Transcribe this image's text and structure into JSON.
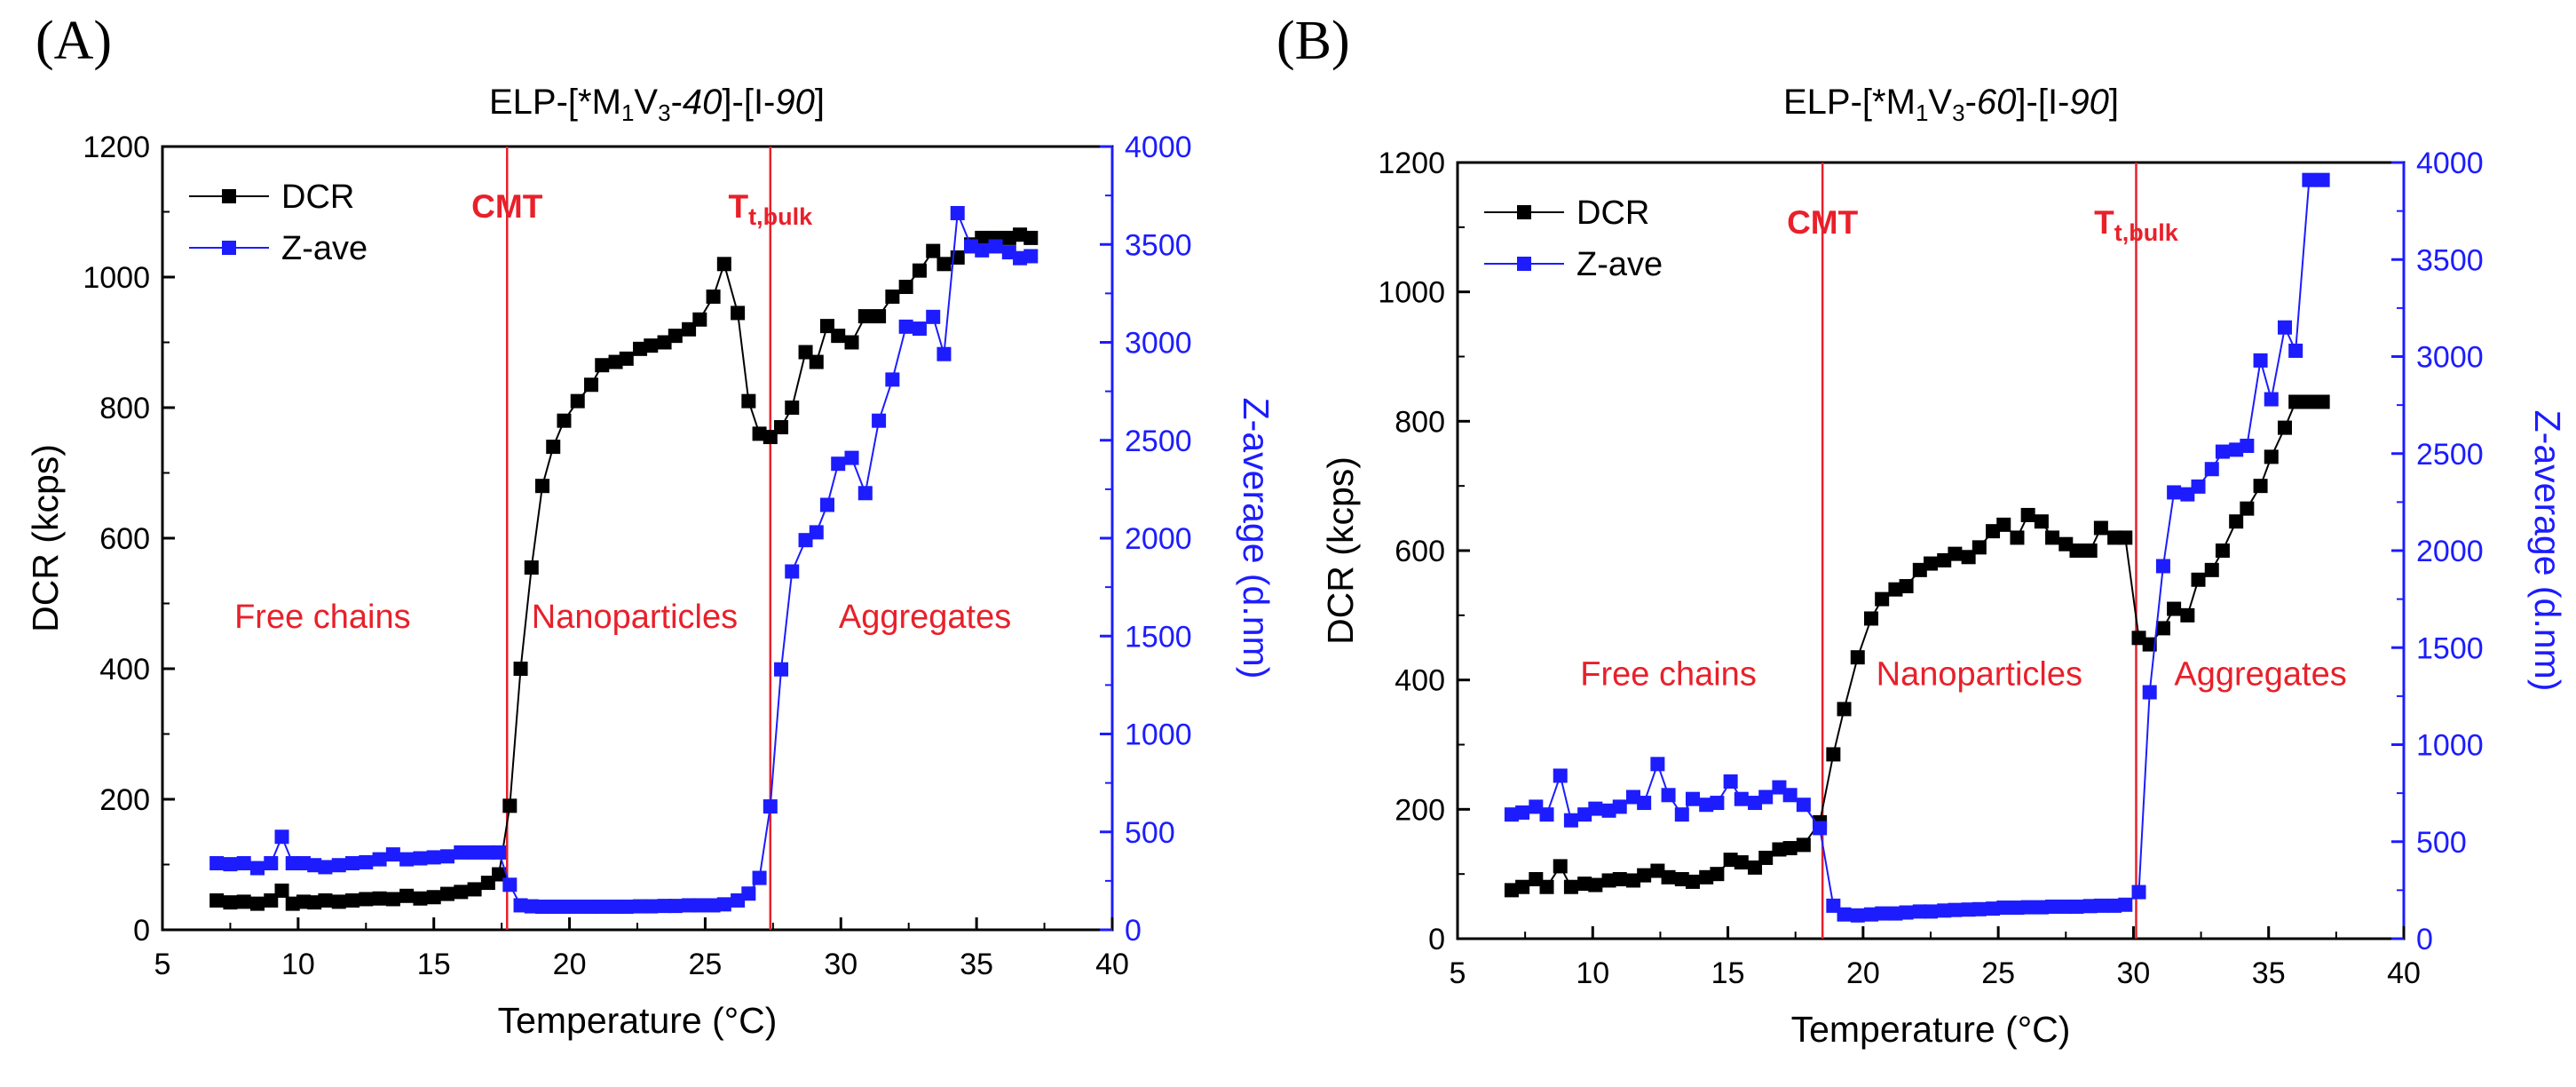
{
  "figure": {
    "panel_a_label": "(A)",
    "panel_b_label": "(B)",
    "colors": {
      "dcr": "#000000",
      "zave": "#1c1cff",
      "annotation": "#e8202a"
    }
  },
  "chart_data": [
    {
      "type": "line",
      "panel": "(A)",
      "title_parts": {
        "pre": "ELP-[*M",
        "sub1": "1",
        "mid": "V",
        "sub2": "3",
        "dash1": "-",
        "ital1": "40",
        "close": "]-[I-",
        "ital2": "90",
        "end": "]"
      },
      "xlabel": "Temperature (°C)",
      "ylabel": "DCR (kcps)",
      "y2label": "Z-average (d.nm)",
      "xlim": [
        5,
        40
      ],
      "ylim": [
        0,
        1200
      ],
      "y2lim": [
        0,
        4000
      ],
      "xticks": [
        5,
        10,
        15,
        20,
        25,
        30,
        35,
        40
      ],
      "yticks": [
        0,
        200,
        400,
        600,
        800,
        1000,
        1200
      ],
      "y2ticks": [
        0,
        500,
        1000,
        1500,
        2000,
        2500,
        3000,
        3500,
        4000
      ],
      "legend": [
        {
          "name": "DCR",
          "color": "#000000"
        },
        {
          "name": "Z-ave",
          "color": "#1c1cff"
        }
      ],
      "legend_position": "top-left",
      "vlines": [
        {
          "x": 17.7,
          "label": "CMT"
        },
        {
          "x": 27.4,
          "label": "Tt,bulk",
          "label_main": "T",
          "label_sub": "t,bulk"
        }
      ],
      "regions": [
        {
          "label": "Free chains",
          "x": 10.9,
          "y": 480
        },
        {
          "label": "Nanoparticles",
          "x": 22.4,
          "y": 480
        },
        {
          "label": "Aggregates",
          "x": 33.1,
          "y": 480
        }
      ],
      "series": [
        {
          "name": "DCR",
          "axis": "left",
          "color": "#000000",
          "x": [
            7.0,
            7.5,
            8.0,
            8.5,
            9.0,
            9.4,
            9.8,
            10.2,
            10.6,
            11.0,
            11.5,
            12.0,
            12.5,
            13.0,
            13.5,
            14.0,
            14.5,
            15.0,
            15.5,
            16.0,
            16.5,
            17.0,
            17.4,
            17.8,
            18.2,
            18.6,
            19.0,
            19.4,
            19.8,
            20.3,
            20.8,
            21.2,
            21.7,
            22.1,
            22.6,
            23.0,
            23.5,
            23.9,
            24.4,
            24.8,
            25.3,
            25.7,
            26.2,
            26.6,
            27.0,
            27.4,
            27.8,
            28.2,
            28.7,
            29.1,
            29.5,
            29.9,
            30.4,
            30.9,
            31.4,
            31.9,
            32.4,
            32.9,
            33.4,
            33.8,
            34.3,
            34.8,
            35.2,
            35.7,
            36.2,
            36.6,
            37.0
          ],
          "values": [
            45,
            42,
            43,
            40,
            45,
            60,
            40,
            43,
            42,
            45,
            43,
            45,
            47,
            48,
            47,
            52,
            48,
            50,
            55,
            58,
            62,
            72,
            85,
            190,
            400,
            555,
            680,
            740,
            780,
            810,
            835,
            865,
            870,
            875,
            890,
            895,
            900,
            910,
            920,
            935,
            970,
            1020,
            945,
            810,
            760,
            755,
            770,
            800,
            885,
            870,
            925,
            910,
            900,
            940,
            940,
            970,
            985,
            1010,
            1040,
            1020,
            1030,
            1050,
            1060,
            1060,
            1060,
            1065,
            1060
          ]
        },
        {
          "name": "Z-ave",
          "axis": "right",
          "color": "#1c1cff",
          "x": [
            7.0,
            7.5,
            8.0,
            8.5,
            9.0,
            9.4,
            9.8,
            10.2,
            10.6,
            11.0,
            11.5,
            12.0,
            12.5,
            13.0,
            13.5,
            14.0,
            14.5,
            15.0,
            15.5,
            16.0,
            16.5,
            17.0,
            17.4,
            17.8,
            18.2,
            18.6,
            19.0,
            19.4,
            19.8,
            20.3,
            20.8,
            21.2,
            21.7,
            22.1,
            22.6,
            23.0,
            23.5,
            23.9,
            24.4,
            24.8,
            25.3,
            25.7,
            26.2,
            26.6,
            27.0,
            27.4,
            27.8,
            28.2,
            28.7,
            29.1,
            29.5,
            29.9,
            30.4,
            30.9,
            31.4,
            31.9,
            32.4,
            32.9,
            33.4,
            33.8,
            34.3,
            34.8,
            35.2,
            35.7,
            36.2,
            36.6,
            37.0
          ],
          "values": [
            340,
            335,
            340,
            315,
            340,
            475,
            340,
            340,
            330,
            320,
            330,
            340,
            345,
            360,
            385,
            360,
            365,
            370,
            375,
            395,
            395,
            395,
            395,
            230,
            125,
            120,
            118,
            118,
            118,
            118,
            118,
            118,
            118,
            118,
            120,
            120,
            122,
            122,
            125,
            125,
            125,
            130,
            150,
            185,
            265,
            630,
            1330,
            1830,
            1990,
            2030,
            2170,
            2380,
            2410,
            2230,
            2600,
            2810,
            3080,
            3070,
            3130,
            2940,
            3660,
            3490,
            3470,
            3490,
            3460,
            3430,
            3440
          ]
        }
      ]
    },
    {
      "type": "line",
      "panel": "(B)",
      "title_parts": {
        "pre": "ELP-[*M",
        "sub1": "1",
        "mid": "V",
        "sub2": "3",
        "dash1": "-",
        "ital1": "60",
        "close": "]-[I-",
        "ital2": "90",
        "end": "]"
      },
      "xlabel": "Temperature (°C)",
      "ylabel": "DCR (kcps)",
      "y2label": "Z-average (d.nm)",
      "xlim": [
        5,
        40
      ],
      "ylim": [
        0,
        1200
      ],
      "y2lim": [
        0,
        4000
      ],
      "xticks": [
        5,
        10,
        15,
        20,
        25,
        30,
        35,
        40
      ],
      "yticks": [
        0,
        200,
        400,
        600,
        800,
        1000,
        1200
      ],
      "y2ticks": [
        0,
        500,
        1000,
        1500,
        2000,
        2500,
        3000,
        3500,
        4000
      ],
      "legend": [
        {
          "name": "DCR",
          "color": "#000000"
        },
        {
          "name": "Z-ave",
          "color": "#1c1cff"
        }
      ],
      "legend_position": "top-left",
      "vlines": [
        {
          "x": 18.5,
          "label": "CMT"
        },
        {
          "x": 30.1,
          "label": "Tt,bulk",
          "label_main": "T",
          "label_sub": "t,bulk"
        }
      ],
      "regions": [
        {
          "label": "Free chains",
          "x": 12.8,
          "y": 410
        },
        {
          "label": "Nanoparticles",
          "x": 24.3,
          "y": 410
        },
        {
          "label": "Aggregates",
          "x": 34.7,
          "y": 410
        }
      ],
      "series": [
        {
          "name": "DCR",
          "axis": "left",
          "color": "#000000",
          "x": [
            7.0,
            7.4,
            7.9,
            8.3,
            8.8,
            9.2,
            9.7,
            10.1,
            10.6,
            11.0,
            11.5,
            11.9,
            12.4,
            12.8,
            13.3,
            13.7,
            14.2,
            14.6,
            15.1,
            15.5,
            16.0,
            16.4,
            16.9,
            17.3,
            17.8,
            18.4,
            18.9,
            19.3,
            19.8,
            20.3,
            20.7,
            21.2,
            21.6,
            22.1,
            22.5,
            23.0,
            23.4,
            23.9,
            24.3,
            24.8,
            25.2,
            25.7,
            26.1,
            26.6,
            27.0,
            27.5,
            27.9,
            28.4,
            28.8,
            29.3,
            29.7,
            30.2,
            30.6,
            31.1,
            31.5,
            32.0,
            32.4,
            32.9,
            33.3,
            33.8,
            34.2,
            34.7,
            35.1,
            35.6,
            36.0,
            36.5,
            37.0
          ],
          "values": [
            75,
            80,
            92,
            80,
            112,
            80,
            85,
            83,
            90,
            92,
            90,
            98,
            105,
            95,
            92,
            88,
            95,
            100,
            122,
            118,
            110,
            125,
            138,
            140,
            145,
            180,
            285,
            355,
            435,
            495,
            525,
            540,
            545,
            570,
            580,
            585,
            595,
            590,
            605,
            630,
            640,
            620,
            655,
            645,
            620,
            610,
            600,
            600,
            635,
            620,
            620,
            465,
            455,
            480,
            510,
            500,
            555,
            570,
            600,
            645,
            665,
            700,
            745,
            790,
            830,
            830,
            830
          ]
        },
        {
          "name": "Z-ave",
          "axis": "right",
          "color": "#1c1cff",
          "x": [
            7.0,
            7.4,
            7.9,
            8.3,
            8.8,
            9.2,
            9.7,
            10.1,
            10.6,
            11.0,
            11.5,
            11.9,
            12.4,
            12.8,
            13.3,
            13.7,
            14.2,
            14.6,
            15.1,
            15.5,
            16.0,
            16.4,
            16.9,
            17.3,
            17.8,
            18.4,
            18.9,
            19.3,
            19.8,
            20.3,
            20.7,
            21.2,
            21.6,
            22.1,
            22.5,
            23.0,
            23.4,
            23.9,
            24.3,
            24.8,
            25.2,
            25.7,
            26.1,
            26.6,
            27.0,
            27.5,
            27.9,
            28.4,
            28.8,
            29.3,
            29.7,
            30.2,
            30.6,
            31.1,
            31.5,
            32.0,
            32.4,
            32.9,
            33.3,
            33.8,
            34.2,
            34.7,
            35.1,
            35.6,
            36.0,
            36.5,
            37.0
          ],
          "values": [
            640,
            650,
            680,
            640,
            840,
            610,
            640,
            670,
            660,
            680,
            730,
            700,
            900,
            740,
            640,
            720,
            690,
            700,
            810,
            720,
            700,
            730,
            780,
            740,
            690,
            570,
            170,
            125,
            120,
            125,
            130,
            130,
            135,
            140,
            140,
            145,
            148,
            150,
            152,
            155,
            160,
            160,
            162,
            162,
            165,
            165,
            165,
            168,
            170,
            170,
            175,
            240,
            1270,
            1920,
            2300,
            2290,
            2330,
            2420,
            2510,
            2520,
            2540,
            2980,
            2780,
            3150,
            3030,
            3910,
            3910
          ]
        }
      ]
    }
  ]
}
